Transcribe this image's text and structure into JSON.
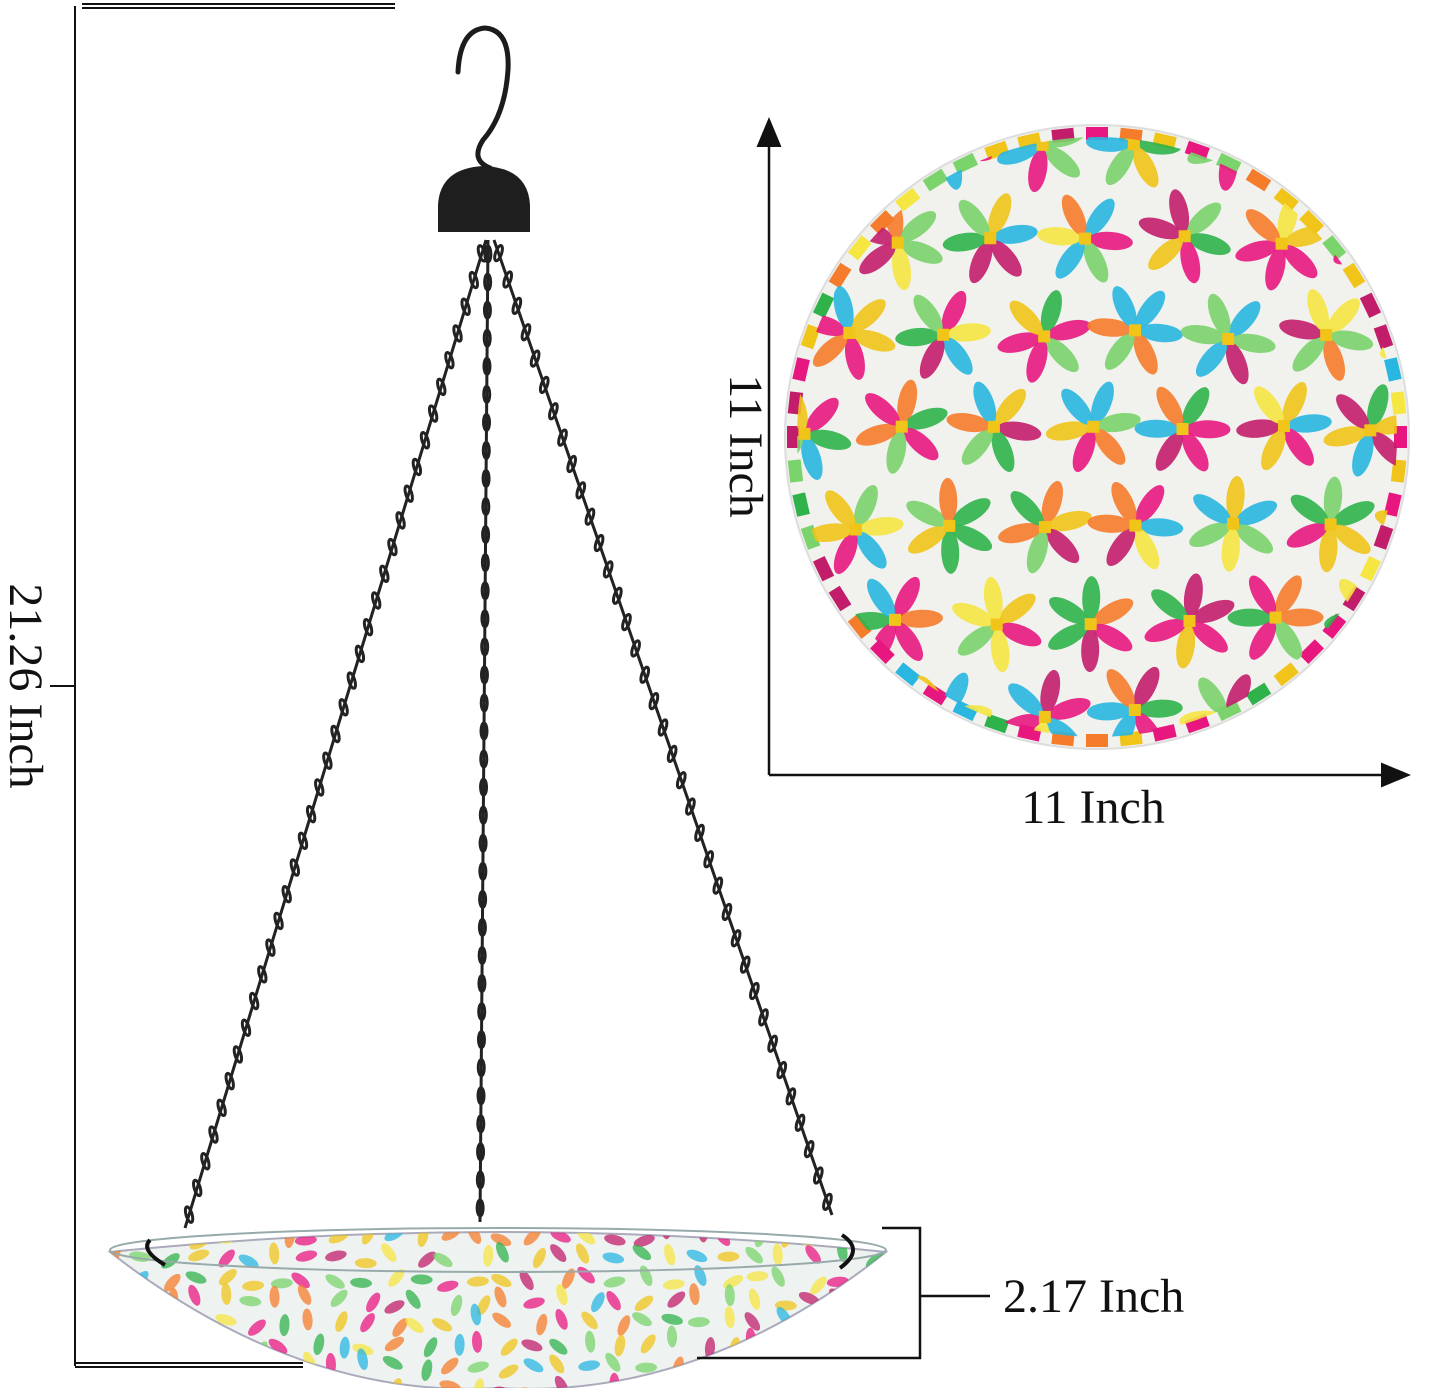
{
  "dimensions": {
    "total_height": "21.26 Inch",
    "plate_height": "11 Inch",
    "plate_width": "11 Inch",
    "bowl_depth": "2.17 Inch"
  },
  "colors": {
    "line": "#111111",
    "metal": "#1c1c1c",
    "mosaic": [
      "#e8177f",
      "#f0c419",
      "#2fb24a",
      "#29b6e0",
      "#f57c2a",
      "#c21d6b",
      "#f5e642",
      "#7ad36b"
    ]
  }
}
